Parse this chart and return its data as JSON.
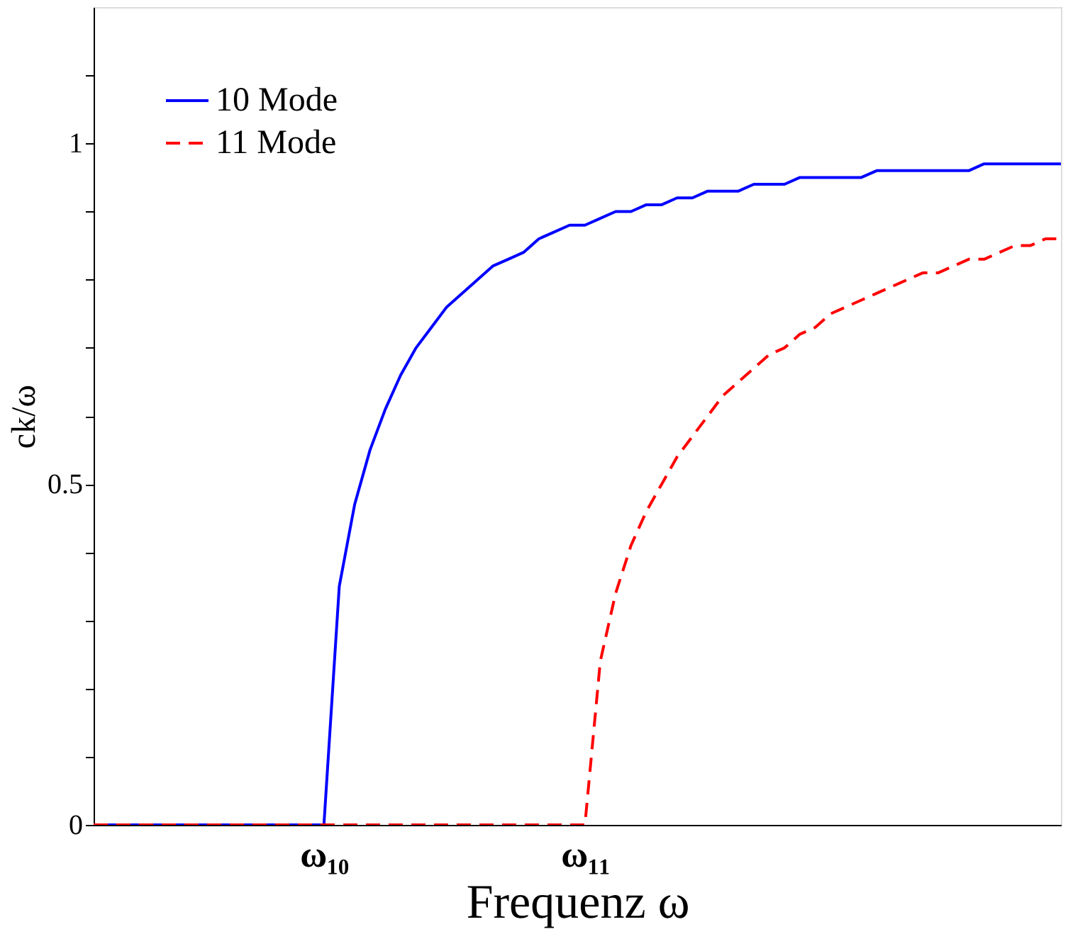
{
  "chart_data": {
    "type": "line",
    "xlabel": "Frequenz ω",
    "ylabel": "ck/ω",
    "categories": [
      null,
      null,
      null,
      null,
      null,
      null,
      null,
      null,
      null,
      null,
      null,
      null,
      null,
      null,
      null,
      "ω₁₀",
      null,
      null,
      null,
      null,
      null,
      null,
      null,
      null,
      null,
      null,
      null,
      null,
      null,
      null,
      null,
      null,
      "ω₁₁",
      null,
      null,
      null,
      null,
      null,
      null,
      null,
      null,
      null,
      null,
      null,
      null,
      null,
      null,
      null,
      null,
      null,
      null,
      null,
      null,
      null,
      null,
      null,
      null,
      null,
      null,
      null,
      null,
      null,
      null,
      null
    ],
    "ylim": [
      0,
      1.2
    ],
    "yticks": [
      0,
      {
        "value": 0.1,
        "label": null
      },
      {
        "value": 0.2,
        "label": null
      },
      {
        "value": 0.3,
        "label": null
      },
      {
        "value": 0.4,
        "label": null
      },
      0.5,
      {
        "value": 0.6,
        "label": null
      },
      {
        "value": 0.7,
        "label": null
      },
      {
        "value": 0.8,
        "label": null
      },
      {
        "value": 0.9,
        "label": null
      },
      1,
      {
        "value": 1.1,
        "label": null
      }
    ],
    "grid": false,
    "legend": "top left",
    "marker": "none",
    "series": [
      {
        "name": "10 Mode",
        "color": "#0000ff",
        "line_style": "solid",
        "values": [
          0,
          0,
          0,
          0,
          0,
          0,
          0,
          0,
          0,
          0,
          0,
          0,
          0,
          0,
          0,
          0,
          0.35,
          0.47,
          0.55,
          0.61,
          0.66,
          0.7,
          0.73,
          0.76,
          0.78,
          0.8,
          0.82,
          0.83,
          0.84,
          0.86,
          0.87,
          0.88,
          0.88,
          0.89,
          0.9,
          0.9,
          0.91,
          0.91,
          0.92,
          0.92,
          0.93,
          0.93,
          0.93,
          0.94,
          0.94,
          0.94,
          0.95,
          0.95,
          0.95,
          0.95,
          0.95,
          0.96,
          0.96,
          0.96,
          0.96,
          0.96,
          0.96,
          0.96,
          0.97,
          0.97,
          0.97,
          0.97,
          0.97,
          0.97
        ]
      },
      {
        "name": "11 Mode",
        "color": "#ff0000",
        "line_style": "dashed",
        "values": [
          0,
          0,
          0,
          0,
          0,
          0,
          0,
          0,
          0,
          0,
          0,
          0,
          0,
          0,
          0,
          0,
          0,
          0,
          0,
          0,
          0,
          0,
          0,
          0,
          0,
          0,
          0,
          0,
          0,
          0,
          0,
          0,
          0,
          0.24,
          0.34,
          0.41,
          0.46,
          0.5,
          0.54,
          0.57,
          0.6,
          0.63,
          0.65,
          0.67,
          0.69,
          0.7,
          0.72,
          0.73,
          0.75,
          0.76,
          0.77,
          0.78,
          0.79,
          0.8,
          0.81,
          0.81,
          0.82,
          0.83,
          0.83,
          0.84,
          0.85,
          0.85,
          0.86,
          0.86
        ]
      }
    ]
  }
}
